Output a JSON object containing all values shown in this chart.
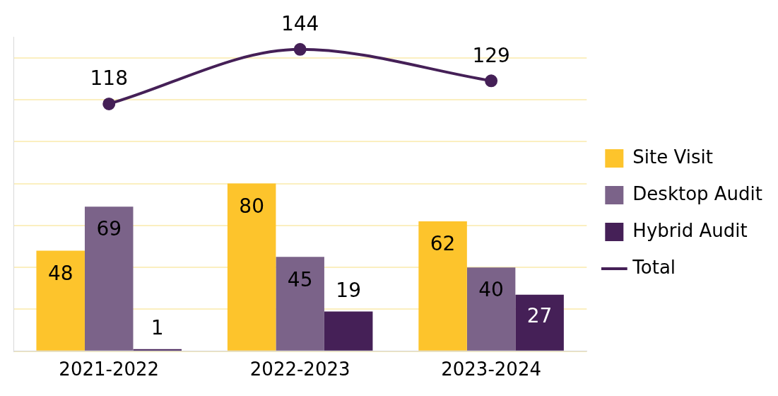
{
  "chart_data": {
    "type": "bar",
    "categories": [
      "2021-2022",
      "2022-2023",
      "2023-2024"
    ],
    "series": [
      {
        "name": "Site Visit",
        "color": "#fdc42c",
        "values": [
          48,
          80,
          62
        ]
      },
      {
        "name": "Desktop Audit",
        "color": "#7b6389",
        "values": [
          69,
          45,
          40
        ]
      },
      {
        "name": "Hybrid Audit",
        "color": "#452057",
        "values": [
          1,
          19,
          27
        ]
      },
      {
        "name": "Total",
        "type": "line",
        "color": "#452057",
        "values": [
          118,
          144,
          129
        ]
      }
    ],
    "yticks": [
      0,
      20,
      40,
      60,
      80,
      100,
      120,
      140
    ],
    "ylim": [
      0,
      150
    ],
    "tick_labels": "x",
    "grid": "y",
    "legend": "right",
    "marker": "circle",
    "data_labels": true
  }
}
